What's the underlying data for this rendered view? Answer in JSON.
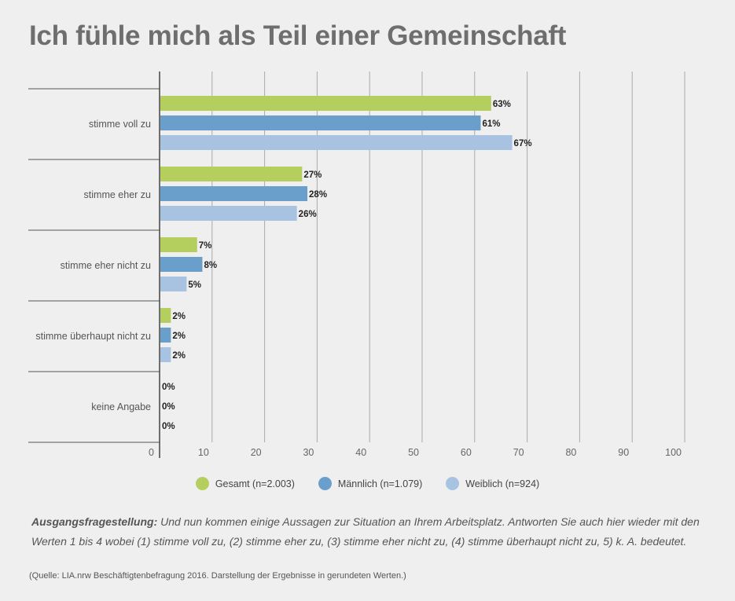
{
  "title": "Ich fühle mich als Teil einer Gemeinschaft",
  "chart_data": {
    "type": "bar",
    "orientation": "horizontal",
    "categories": [
      "stimme voll zu",
      "stimme eher zu",
      "stimme eher nicht zu",
      "stimme überhaupt nicht zu",
      "keine Angabe"
    ],
    "series": [
      {
        "name": "Gesamt (n=2.003)",
        "color": "#b5cf5e",
        "values": [
          63,
          27,
          7,
          2,
          0
        ],
        "labels": [
          "63%",
          "27%",
          "7%",
          "2%",
          "0%"
        ]
      },
      {
        "name": "Männlich (n=1.079)",
        "color": "#6a9ecb",
        "values": [
          61,
          28,
          8,
          2,
          0
        ],
        "labels": [
          "61%",
          "28%",
          "8%",
          "2%",
          "0%"
        ]
      },
      {
        "name": "Weiblich (n=924)",
        "color": "#a7c3e1",
        "values": [
          67,
          26,
          5,
          2,
          0
        ],
        "labels": [
          "67%",
          "26%",
          "5%",
          "2%",
          "0%"
        ]
      }
    ],
    "xlim": [
      0,
      100
    ],
    "xticks": [
      0,
      10,
      20,
      30,
      40,
      50,
      60,
      70,
      80,
      90,
      100
    ],
    "grid": true,
    "legend": "bottom-center"
  },
  "footer": {
    "question_label": "Ausgangsfragestellung:",
    "question_text": " Und nun kommen einige Aussagen zur Situation an Ihrem Arbeitsplatz. Antworten Sie auch hier wieder mit den Werten 1 bis 4 wobei (1) stimme voll zu, (2) stimme eher zu, (3) stimme eher nicht zu, (4) stimme überhaupt nicht zu,  5) k. A. bedeutet.",
    "source": "(Quelle: LIA.nrw Beschäftigtenbefragung 2016. Darstellung der Ergebnisse in gerundeten Werten.)"
  }
}
